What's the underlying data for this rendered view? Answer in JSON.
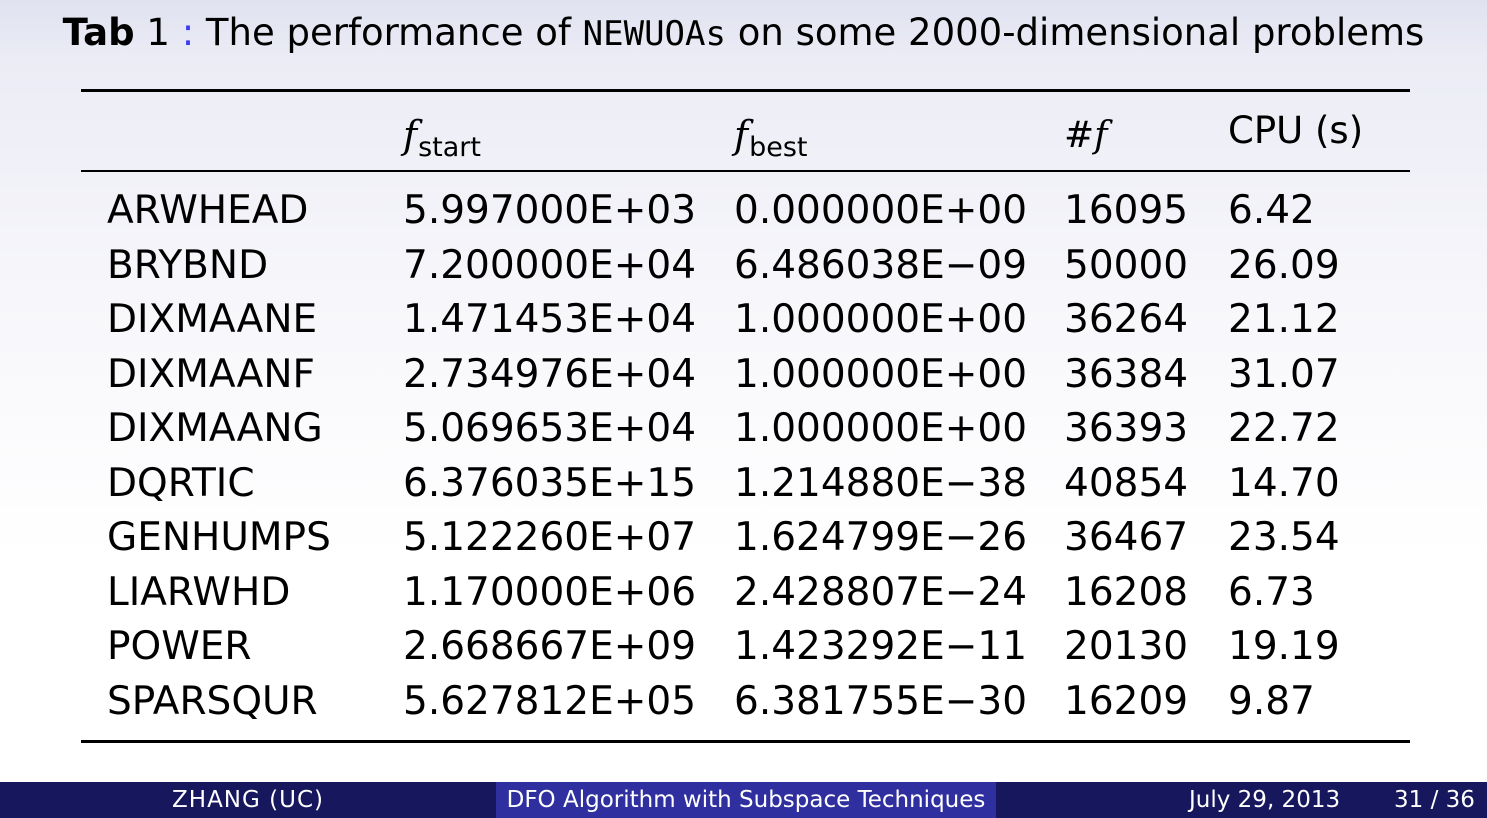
{
  "caption": {
    "label": "Tab",
    "number": "1",
    "separator": ":",
    "text_before": "The performance of",
    "code": "NEWUOAs",
    "text_after": "on some 2000-dimensional problems"
  },
  "table": {
    "headers": {
      "col1_main": "f",
      "col1_sub": "start",
      "col2_main": "f",
      "col2_sub": "best",
      "col3": "#f",
      "col4": "CPU (s)"
    },
    "rows": [
      {
        "name": "ARWHEAD",
        "fstart": "5.997000E+03",
        "fbest": "0.000000E+00",
        "nf": "16095",
        "cpu": "6.42"
      },
      {
        "name": "BRYBND",
        "fstart": "7.200000E+04",
        "fbest": "6.486038E−09",
        "nf": "50000",
        "cpu": "26.09"
      },
      {
        "name": "DIXMAANE",
        "fstart": "1.471453E+04",
        "fbest": "1.000000E+00",
        "nf": "36264",
        "cpu": "21.12"
      },
      {
        "name": "DIXMAANF",
        "fstart": "2.734976E+04",
        "fbest": "1.000000E+00",
        "nf": "36384",
        "cpu": "31.07"
      },
      {
        "name": "DIXMAANG",
        "fstart": "5.069653E+04",
        "fbest": "1.000000E+00",
        "nf": "36393",
        "cpu": "22.72"
      },
      {
        "name": "DQRTIC",
        "fstart": "6.376035E+15",
        "fbest": "1.214880E−38",
        "nf": "40854",
        "cpu": "14.70"
      },
      {
        "name": "GENHUMPS",
        "fstart": "5.122260E+07",
        "fbest": "1.624799E−26",
        "nf": "36467",
        "cpu": "23.54"
      },
      {
        "name": "LIARWHD",
        "fstart": "1.170000E+06",
        "fbest": "2.428807E−24",
        "nf": "16208",
        "cpu": "6.73"
      },
      {
        "name": "POWER",
        "fstart": "2.668667E+09",
        "fbest": "1.423292E−11",
        "nf": "20130",
        "cpu": "19.19"
      },
      {
        "name": "SPARSQUR",
        "fstart": "5.627812E+05",
        "fbest": "6.381755E−30",
        "nf": "16209",
        "cpu": "9.87"
      }
    ]
  },
  "footer": {
    "author": "ZHANG  (UC)",
    "title": "DFO Algorithm with Subspace Techniques",
    "date": "July 29, 2013",
    "page": "31 / 36"
  },
  "colors": {
    "footer_dark": "#17175e",
    "footer_mid": "#2f2fa0",
    "caption_separator": "#3b3bf5"
  }
}
